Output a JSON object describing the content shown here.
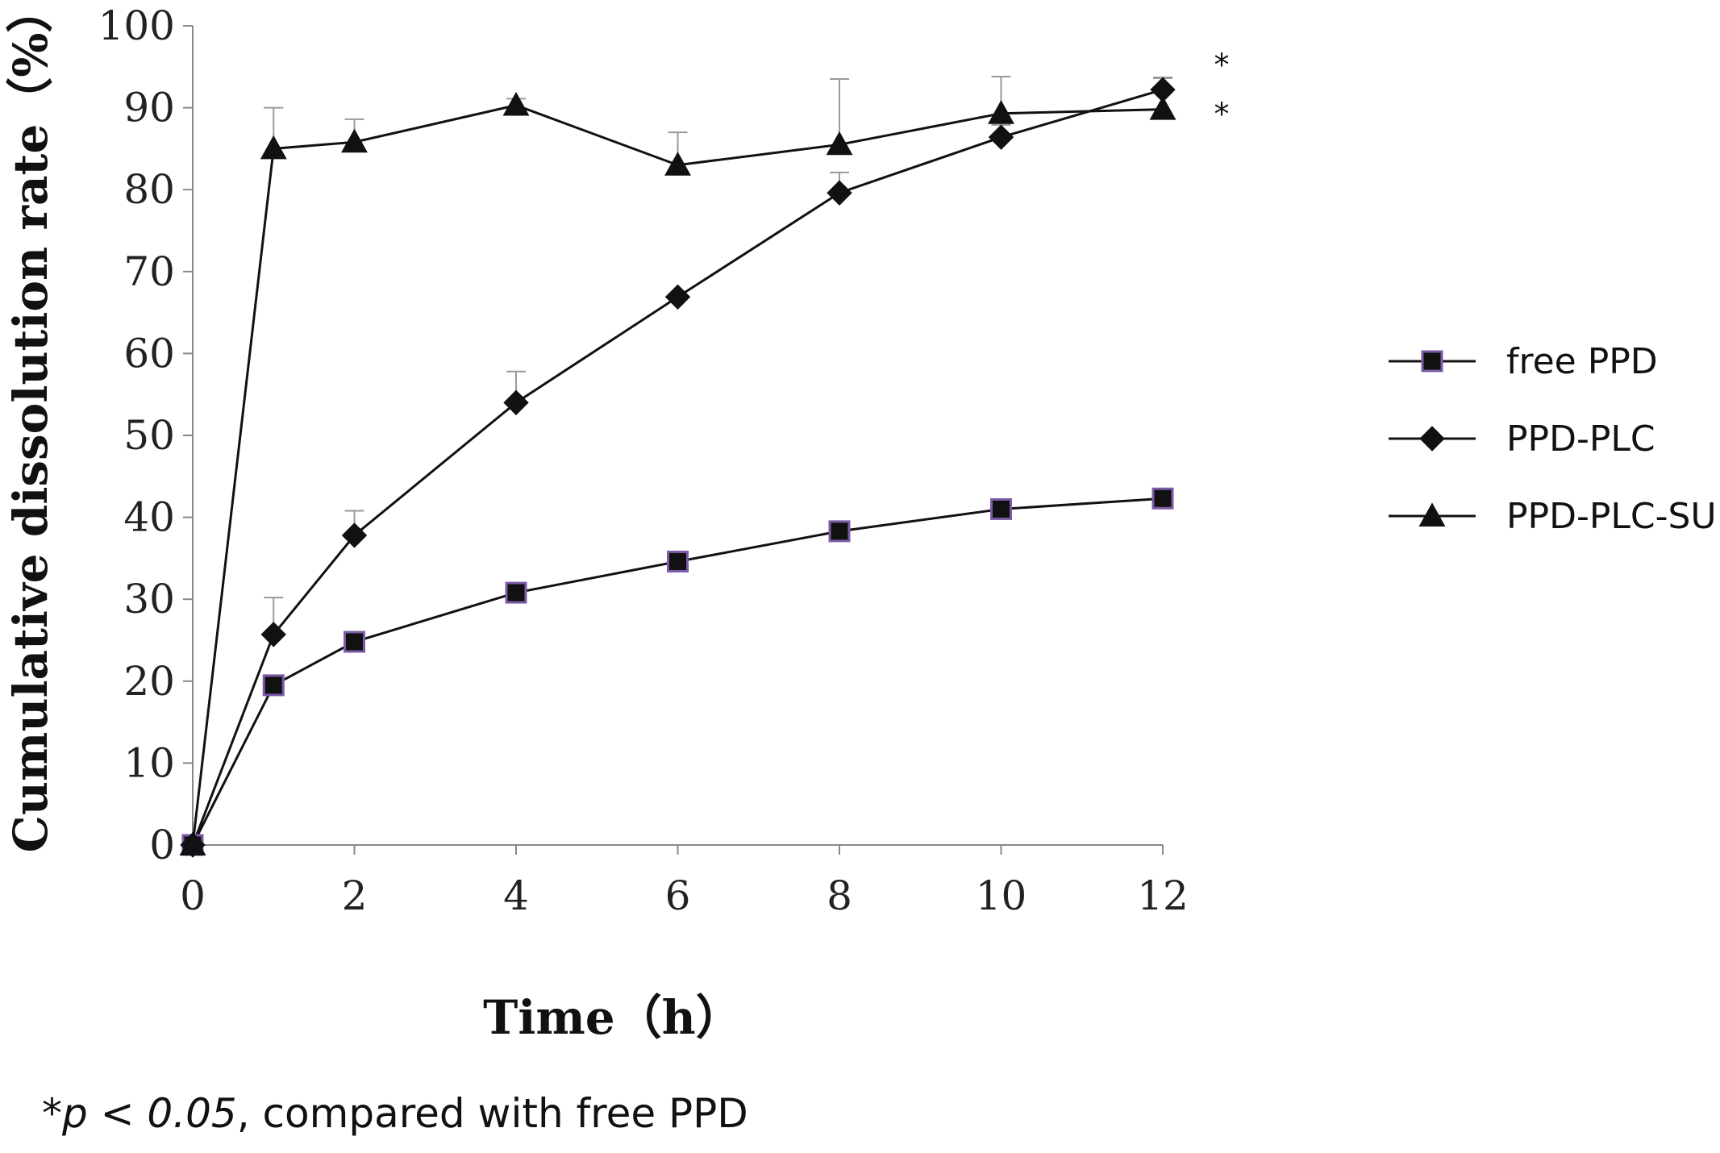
{
  "chart_data": {
    "type": "line",
    "xlabel": "Time（h）",
    "ylabel": "Cumulative dissolution rate（%）",
    "x": [
      0,
      1,
      2,
      4,
      6,
      8,
      10,
      12
    ],
    "xticks": [
      "0",
      "2",
      "4",
      "6",
      "8",
      "10",
      "12"
    ],
    "xtick_values": [
      0,
      2,
      4,
      6,
      8,
      10,
      12
    ],
    "yticks": [
      "0",
      "10",
      "20",
      "30",
      "40",
      "50",
      "60",
      "70",
      "80",
      "90",
      "100"
    ],
    "ytick_values": [
      0,
      10,
      20,
      30,
      40,
      50,
      60,
      70,
      80,
      90,
      100
    ],
    "xlim": [
      0,
      12
    ],
    "ylim": [
      0,
      100
    ],
    "grid": false,
    "legend_position": "right",
    "series": [
      {
        "name": "free PPD",
        "marker": "square",
        "marker_fill": "#111111",
        "marker_edge": "#7b5aa6",
        "values": [
          0,
          19.5,
          24.8,
          30.8,
          34.6,
          38.3,
          41.0,
          42.3
        ],
        "errors": [
          0,
          0,
          0,
          0,
          0,
          0,
          0,
          0
        ]
      },
      {
        "name": "PPD-PLC",
        "marker": "diamond",
        "marker_fill": "#111111",
        "marker_edge": "#111111",
        "values": [
          0,
          25.7,
          37.8,
          54.0,
          66.9,
          79.6,
          86.4,
          92.2
        ],
        "errors": [
          0,
          4.5,
          3.0,
          3.8,
          0,
          2.5,
          1.5,
          1.5
        ]
      },
      {
        "name": "PPD-PLC-SU",
        "marker": "triangle",
        "marker_fill": "#111111",
        "marker_edge": "#111111",
        "values": [
          0,
          85.0,
          85.8,
          90.3,
          83.0,
          85.5,
          89.3,
          89.8
        ],
        "errors": [
          0,
          5.0,
          2.8,
          0.8,
          4.0,
          8.0,
          4.5,
          3.8
        ]
      }
    ],
    "significance_markers": [
      "*",
      "*"
    ]
  },
  "footnote": {
    "star": "*",
    "p_value": "p < 0.05",
    "rest": ", compared with free PPD"
  },
  "colors": {
    "line": "#111111",
    "axis": "#888888",
    "error_bar": "#9a9a9a"
  }
}
